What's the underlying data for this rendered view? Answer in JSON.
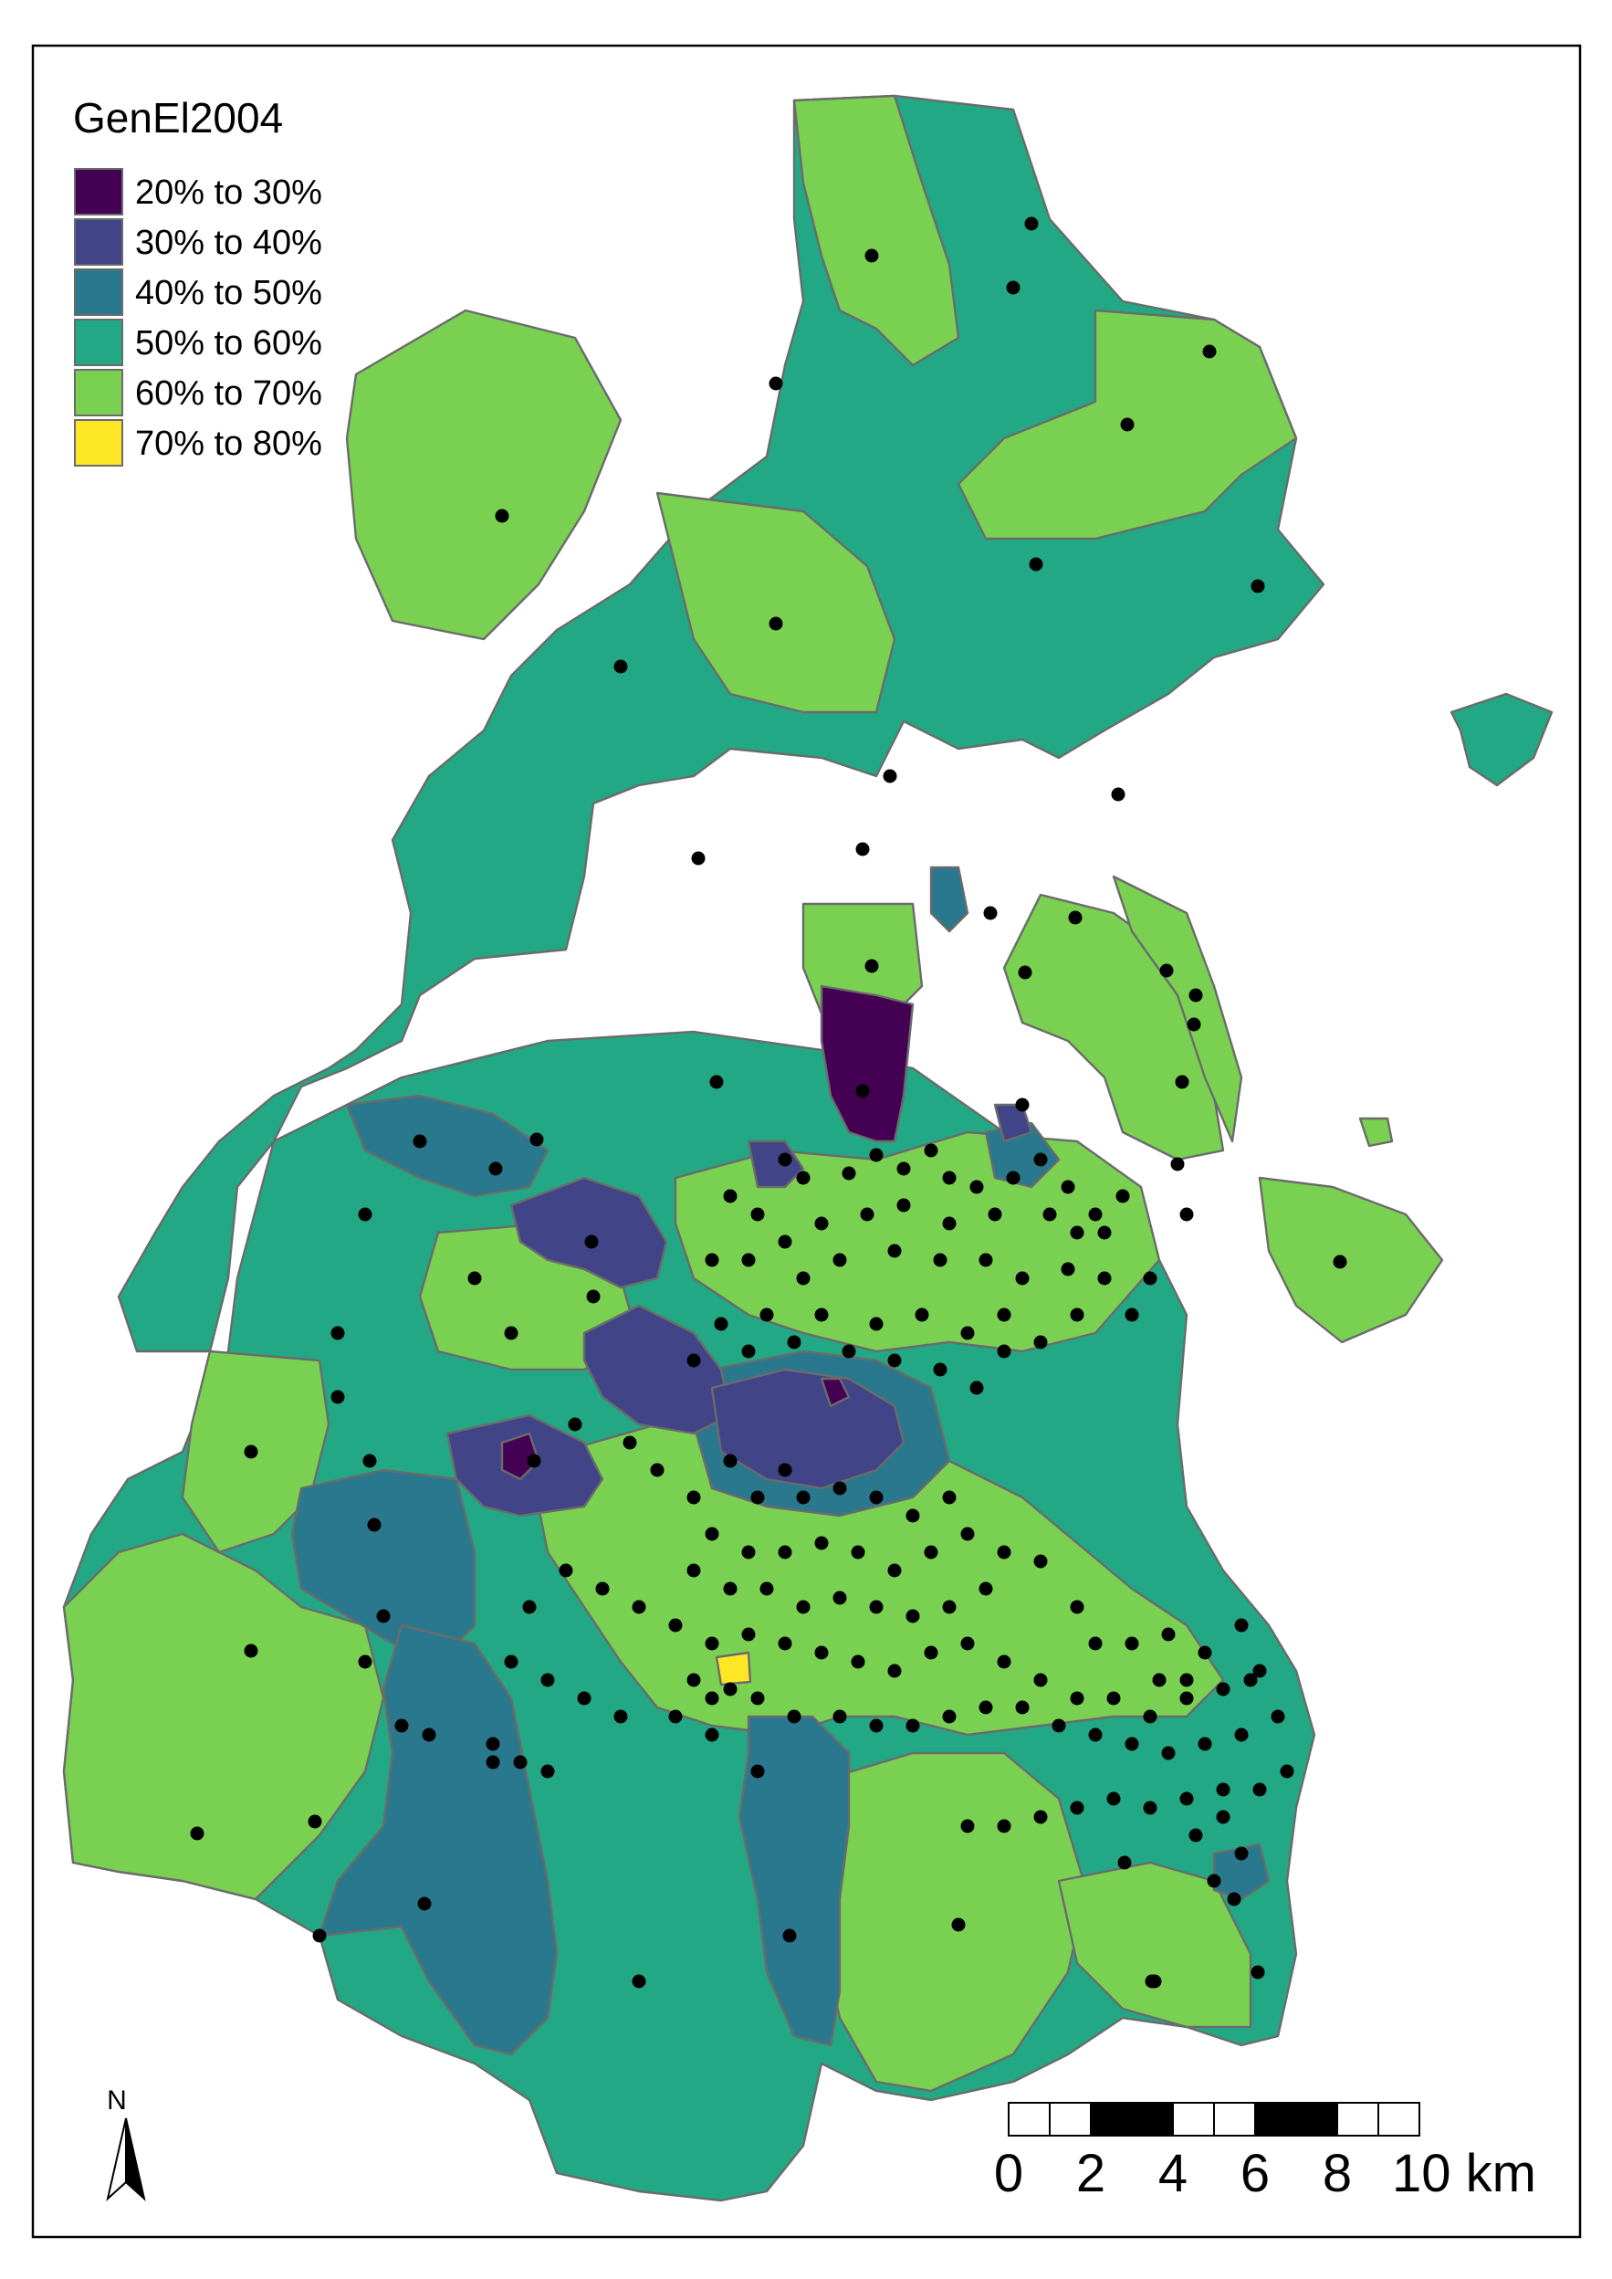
{
  "map": {
    "legend": {
      "title": "GenEl2004",
      "classes": [
        {
          "label": "20% to 30%",
          "color": "#440154"
        },
        {
          "label": "30% to 40%",
          "color": "#414487"
        },
        {
          "label": "40% to 50%",
          "color": "#2a788e"
        },
        {
          "label": "50% to 60%",
          "color": "#22a884"
        },
        {
          "label": "60% to 70%",
          "color": "#7ad151"
        },
        {
          "label": "70% to 80%",
          "color": "#fde725"
        }
      ]
    },
    "scale_bar": {
      "labels": [
        "0",
        "2",
        "4",
        "6",
        "8",
        "10 km"
      ]
    },
    "north_arrow": {
      "label": "N"
    },
    "border_color": "#6b6b6b",
    "point_color": "#000000"
  }
}
